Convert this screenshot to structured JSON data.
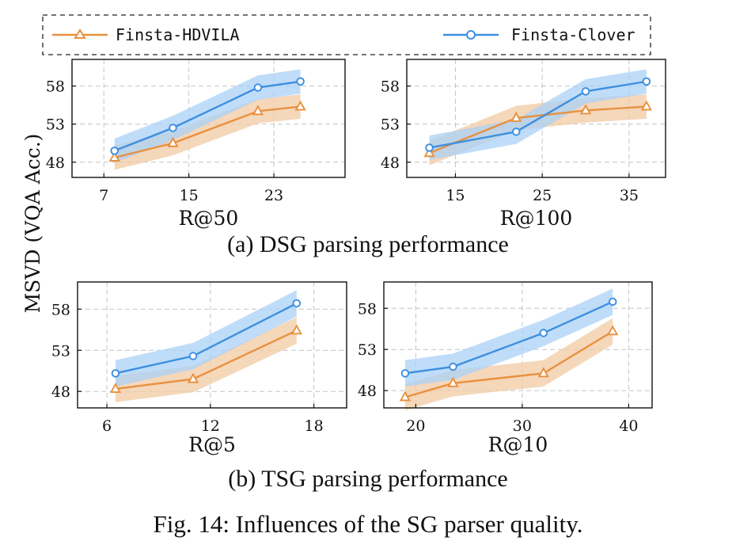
{
  "figure": {
    "sub_a": "(a) DSG parsing performance",
    "sub_b": "(b) TSG parsing performance",
    "caption": "Fig. 14: Influences of the SG parser quality."
  },
  "legend": {
    "items": [
      {
        "label": "Finsta-HDVILA",
        "color": "#e8913f",
        "marker": "triangle"
      },
      {
        "label": "Finsta-Clover",
        "color": "#3d8fe0",
        "marker": "circle"
      }
    ],
    "placement": "top"
  },
  "colors": {
    "hdvila": "#e8913f",
    "clover": "#3d8fe0",
    "hdvila_band": "#f2caa3",
    "clover_band": "#a9d1f7"
  },
  "chart_data": [
    {
      "type": "line",
      "xlabel": "R@50",
      "ylabel": "MSVD (VQA Acc.)",
      "xticks": [
        7,
        15,
        23
      ],
      "yticks": [
        48,
        53,
        58
      ],
      "xlim": [
        4,
        29.7
      ],
      "ylim": [
        46,
        61.5
      ],
      "grid": true,
      "series": [
        {
          "name": "Finsta-HDVILA",
          "x": [
            8,
            13.5,
            21.5,
            25.5
          ],
          "y": [
            48.6,
            50.5,
            54.7,
            55.3
          ]
        },
        {
          "name": "Finsta-Clover",
          "x": [
            8,
            13.5,
            21.5,
            25.5
          ],
          "y": [
            49.5,
            52.5,
            57.8,
            58.6
          ]
        }
      ]
    },
    {
      "type": "line",
      "xlabel": "R@100",
      "ylabel": "MSVD (VQA Acc.)",
      "xticks": [
        15,
        25,
        35
      ],
      "yticks": [
        48,
        53,
        58
      ],
      "xlim": [
        9.4,
        39.2
      ],
      "ylim": [
        46,
        61.5
      ],
      "grid": true,
      "series": [
        {
          "name": "Finsta-HDVILA",
          "x": [
            12,
            22,
            30,
            37
          ],
          "y": [
            49.2,
            53.8,
            54.8,
            55.3
          ]
        },
        {
          "name": "Finsta-Clover",
          "x": [
            12,
            22,
            30,
            37
          ],
          "y": [
            49.9,
            52.0,
            57.3,
            58.6
          ]
        }
      ]
    },
    {
      "type": "line",
      "xlabel": "R@5",
      "ylabel": "MSVD (VQA Acc.)",
      "xticks": [
        6,
        12,
        18
      ],
      "yticks": [
        48,
        53,
        58
      ],
      "xlim": [
        4.3,
        19.9
      ],
      "ylim": [
        46,
        61.3
      ],
      "grid": true,
      "series": [
        {
          "name": "Finsta-HDVILA",
          "x": [
            6.5,
            11,
            17
          ],
          "y": [
            48.3,
            49.5,
            55.4
          ]
        },
        {
          "name": "Finsta-Clover",
          "x": [
            6.5,
            11,
            17
          ],
          "y": [
            50.2,
            52.3,
            58.7
          ]
        }
      ]
    },
    {
      "type": "line",
      "xlabel": "R@10",
      "ylabel": "MSVD (VQA Acc.)",
      "xticks": [
        20,
        30,
        40
      ],
      "yticks": [
        48,
        53,
        58
      ],
      "xlim": [
        17,
        42.2
      ],
      "ylim": [
        45.9,
        61.2
      ],
      "grid": true,
      "series": [
        {
          "name": "Finsta-HDVILA",
          "x": [
            19,
            23.5,
            32,
            38.5
          ],
          "y": [
            47.2,
            48.9,
            50.1,
            55.2
          ]
        },
        {
          "name": "Finsta-Clover",
          "x": [
            19,
            23.5,
            32,
            38.5
          ],
          "y": [
            50.1,
            50.9,
            55.0,
            58.8
          ]
        }
      ]
    }
  ]
}
